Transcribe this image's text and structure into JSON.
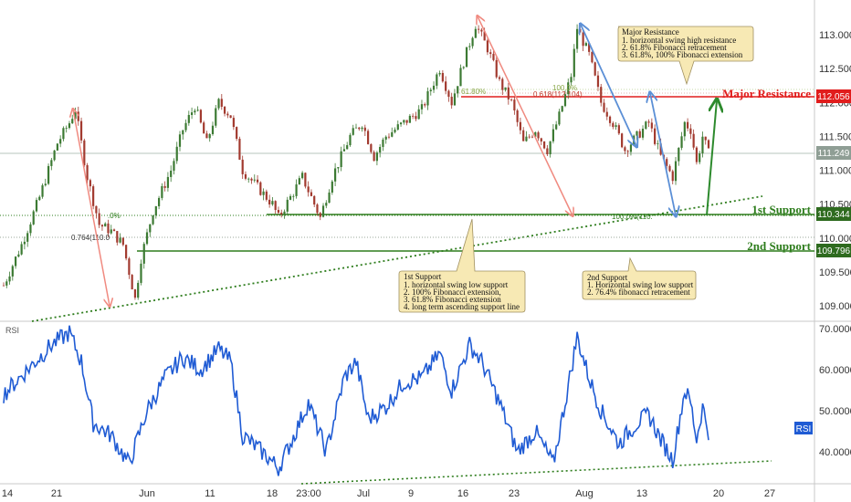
{
  "colors": {
    "up": "#3c7a33",
    "down": "#a23a2f",
    "resistance": "#e11d1d",
    "support": "#2e7d1d",
    "rsi": "#1f5bd4",
    "callout": "#f7e9b4",
    "red_arrow": "#f08a80",
    "blue_arrow": "#5b8fd6",
    "green_arrow": "#2d8a2d",
    "last_price": "#8f9e95"
  },
  "chart_data": [
    {
      "type": "candlestick",
      "title": "",
      "y_ticks": [
        "113.000",
        "112.500",
        "112.000",
        "111.500",
        "111.000",
        "110.500",
        "110.000",
        "109.500",
        "109.000"
      ],
      "ylim": [
        108.7,
        113.3
      ],
      "x_ticks": [
        "14",
        "21",
        "Jun",
        "11",
        "18",
        "23:00",
        "Jul",
        "9",
        "16",
        "23",
        "Aug",
        "13",
        "20",
        "27"
      ],
      "price_path": [
        {
          "t": 0,
          "v": 109.3
        },
        {
          "t": 3,
          "v": 109.9
        },
        {
          "t": 6,
          "v": 110.6
        },
        {
          "t": 9,
          "v": 111.4
        },
        {
          "t": 11,
          "v": 111.7
        },
        {
          "t": 12,
          "v": 111.9
        },
        {
          "t": 14,
          "v": 110.9
        },
        {
          "t": 16,
          "v": 110.2
        },
        {
          "t": 18,
          "v": 110.1
        },
        {
          "t": 20,
          "v": 109.9
        },
        {
          "t": 22,
          "v": 109.1
        },
        {
          "t": 23,
          "v": 109.7
        },
        {
          "t": 25,
          "v": 110.4
        },
        {
          "t": 28,
          "v": 111.0
        },
        {
          "t": 30,
          "v": 111.6
        },
        {
          "t": 32,
          "v": 111.95
        },
        {
          "t": 34,
          "v": 111.4
        },
        {
          "t": 36,
          "v": 112.0
        },
        {
          "t": 38,
          "v": 111.8
        },
        {
          "t": 40,
          "v": 111.0
        },
        {
          "t": 43,
          "v": 110.7
        },
        {
          "t": 45,
          "v": 110.5
        },
        {
          "t": 46,
          "v": 110.3
        },
        {
          "t": 48,
          "v": 110.6
        },
        {
          "t": 50,
          "v": 110.9
        },
        {
          "t": 53,
          "v": 110.3
        },
        {
          "t": 55,
          "v": 110.9
        },
        {
          "t": 58,
          "v": 111.5
        },
        {
          "t": 60,
          "v": 111.7
        },
        {
          "t": 62,
          "v": 111.2
        },
        {
          "t": 64,
          "v": 111.5
        },
        {
          "t": 67,
          "v": 111.7
        },
        {
          "t": 70,
          "v": 111.9
        },
        {
          "t": 73,
          "v": 112.5
        },
        {
          "t": 75,
          "v": 112.0
        },
        {
          "t": 77,
          "v": 112.6
        },
        {
          "t": 79,
          "v": 113.15
        },
        {
          "t": 81,
          "v": 112.8
        },
        {
          "t": 83,
          "v": 112.3
        },
        {
          "t": 85,
          "v": 112.0
        },
        {
          "t": 87,
          "v": 111.4
        },
        {
          "t": 89,
          "v": 111.6
        },
        {
          "t": 91,
          "v": 111.3
        },
        {
          "t": 93,
          "v": 111.8
        },
        {
          "t": 95,
          "v": 112.4
        },
        {
          "t": 96,
          "v": 113.1
        },
        {
          "t": 98,
          "v": 112.7
        },
        {
          "t": 100,
          "v": 112.0
        },
        {
          "t": 102,
          "v": 111.7
        },
        {
          "t": 104,
          "v": 111.3
        },
        {
          "t": 106,
          "v": 111.5
        },
        {
          "t": 108,
          "v": 111.7
        },
        {
          "t": 110,
          "v": 111.2
        },
        {
          "t": 112,
          "v": 110.9
        },
        {
          "t": 113,
          "v": 111.3
        },
        {
          "t": 114,
          "v": 111.7
        },
        {
          "t": 115,
          "v": 111.6
        },
        {
          "t": 116,
          "v": 111.1
        },
        {
          "t": 117,
          "v": 111.5
        },
        {
          "t": 118,
          "v": 111.25
        }
      ],
      "levels": {
        "major_resistance": {
          "value": 112.056,
          "label": "Major Resistance",
          "price_tag": "112.056"
        },
        "first_support": {
          "value": 110.344,
          "label": "1st Support",
          "price_tag": "110.344"
        },
        "second_support": {
          "value": 109.796,
          "label": "2nd Support",
          "price_tag": "109.796"
        },
        "last_price": {
          "value": 111.249,
          "price_tag": "111.249"
        }
      },
      "fib_labels": {
        "a": "61.80%",
        "b": "0.618(112.104)",
        "c": "100.0%",
        "d": "0.764(110.0",
        "e": "100.0%(110.",
        "f": ".0%"
      },
      "callouts": {
        "resistance": {
          "title": "Major Resistance",
          "lines": [
            "1. horizontal swing high resistance",
            "2. 61.8% Fibonacci retracement",
            "3. 61.8%, 100% Fibonacci extension"
          ]
        },
        "first_support": {
          "title": "1st Support",
          "lines": [
            "1. horizontal swing low support",
            "2. 100% Fibonacci extension,",
            "3. 61.8% Fibonacci extension",
            "4. long term ascending support line"
          ]
        },
        "second_support": {
          "title": "2nd Support",
          "lines": [
            "1. Horizontal swing low support",
            "2. 76.4% fibonacci retracement"
          ]
        }
      }
    },
    {
      "type": "line",
      "title": "RSI",
      "badge": "RSI",
      "y_ticks": [
        "70.0000",
        "60.0000",
        "50.0000",
        "40.0000"
      ],
      "ylim": [
        32,
        72
      ],
      "path": [
        {
          "t": 0,
          "v": 54
        },
        {
          "t": 4,
          "v": 60
        },
        {
          "t": 8,
          "v": 66
        },
        {
          "t": 11,
          "v": 69
        },
        {
          "t": 13,
          "v": 62
        },
        {
          "t": 15,
          "v": 47
        },
        {
          "t": 18,
          "v": 44
        },
        {
          "t": 21,
          "v": 37
        },
        {
          "t": 24,
          "v": 50
        },
        {
          "t": 27,
          "v": 58
        },
        {
          "t": 30,
          "v": 63
        },
        {
          "t": 33,
          "v": 60
        },
        {
          "t": 36,
          "v": 65
        },
        {
          "t": 38,
          "v": 62
        },
        {
          "t": 40,
          "v": 44
        },
        {
          "t": 44,
          "v": 39
        },
        {
          "t": 46,
          "v": 36
        },
        {
          "t": 48,
          "v": 42
        },
        {
          "t": 51,
          "v": 52
        },
        {
          "t": 54,
          "v": 40
        },
        {
          "t": 57,
          "v": 58
        },
        {
          "t": 59,
          "v": 62
        },
        {
          "t": 61,
          "v": 48
        },
        {
          "t": 64,
          "v": 51
        },
        {
          "t": 67,
          "v": 57
        },
        {
          "t": 70,
          "v": 58
        },
        {
          "t": 73,
          "v": 64
        },
        {
          "t": 75,
          "v": 55
        },
        {
          "t": 78,
          "v": 66
        },
        {
          "t": 80,
          "v": 62
        },
        {
          "t": 83,
          "v": 52
        },
        {
          "t": 86,
          "v": 40
        },
        {
          "t": 89,
          "v": 45
        },
        {
          "t": 92,
          "v": 37
        },
        {
          "t": 94,
          "v": 52
        },
        {
          "t": 96,
          "v": 68
        },
        {
          "t": 98,
          "v": 58
        },
        {
          "t": 100,
          "v": 50
        },
        {
          "t": 103,
          "v": 42
        },
        {
          "t": 106,
          "v": 47
        },
        {
          "t": 108,
          "v": 49
        },
        {
          "t": 110,
          "v": 43
        },
        {
          "t": 112,
          "v": 38
        },
        {
          "t": 114,
          "v": 55
        },
        {
          "t": 115,
          "v": 52
        },
        {
          "t": 116,
          "v": 43
        },
        {
          "t": 117,
          "v": 51
        },
        {
          "t": 118,
          "v": 45
        }
      ]
    }
  ]
}
